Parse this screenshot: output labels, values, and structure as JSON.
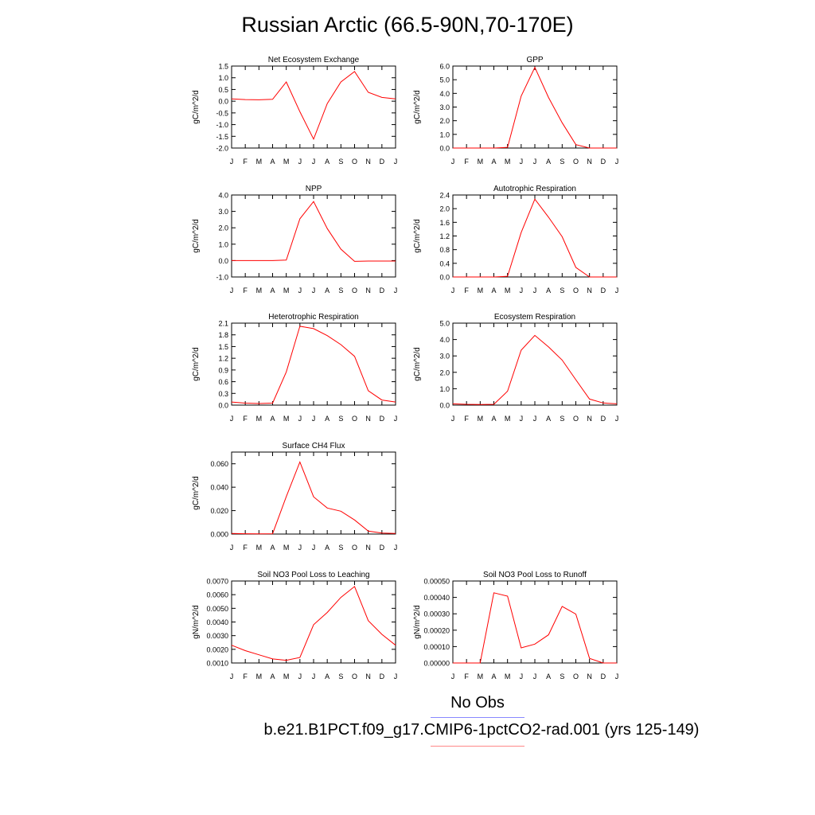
{
  "figure": {
    "title": "Russian Arctic (66.5-90N,70-170E)",
    "legend": {
      "obs_label": "No Obs",
      "obs_color": "#8888ff",
      "model_label": "b.e21.B1PCT.f09_g17.CMIP6-1pctCO2-rad.001 (yrs 125-149)",
      "model_color": "#ff8888"
    },
    "line_color": "#ff0000"
  },
  "chart_data": [
    {
      "type": "line",
      "title": "Net Ecosystem Exchange",
      "ylabel": "gC/m^2/d",
      "x": [
        "J",
        "F",
        "M",
        "A",
        "M",
        "J",
        "J",
        "A",
        "S",
        "O",
        "N",
        "D",
        "J"
      ],
      "ylim": [
        -2.0,
        1.5
      ],
      "yticks": [
        "-2.0",
        "-1.5",
        "-1.0",
        "-0.5",
        "0.0",
        "0.5",
        "1.0",
        "1.5"
      ],
      "series": [
        {
          "values": [
            0.1,
            0.07,
            0.06,
            0.08,
            0.82,
            -0.45,
            -1.62,
            -0.1,
            0.82,
            1.27,
            0.38,
            0.16,
            0.1
          ]
        }
      ]
    },
    {
      "type": "line",
      "title": "GPP",
      "ylabel": "gC/m^2/d",
      "x": [
        "J",
        "F",
        "M",
        "A",
        "M",
        "J",
        "J",
        "A",
        "S",
        "O",
        "N",
        "D",
        "J"
      ],
      "ylim": [
        0.0,
        6.0
      ],
      "yticks": [
        "0.0",
        "1.0",
        "2.0",
        "3.0",
        "4.0",
        "5.0",
        "6.0"
      ],
      "series": [
        {
          "values": [
            0.0,
            0.0,
            0.0,
            0.0,
            0.05,
            3.8,
            5.9,
            3.7,
            1.85,
            0.25,
            0.0,
            0.0,
            0.0
          ]
        }
      ]
    },
    {
      "type": "line",
      "title": "NPP",
      "ylabel": "gC/m^2/d",
      "x": [
        "J",
        "F",
        "M",
        "A",
        "M",
        "J",
        "J",
        "A",
        "S",
        "O",
        "N",
        "D",
        "J"
      ],
      "ylim": [
        -1.0,
        4.0
      ],
      "yticks": [
        "-1.0",
        "0.0",
        "1.0",
        "2.0",
        "3.0",
        "4.0"
      ],
      "series": [
        {
          "values": [
            0.0,
            0.0,
            0.0,
            0.0,
            0.03,
            2.55,
            3.6,
            1.95,
            0.7,
            -0.05,
            -0.03,
            -0.03,
            -0.03
          ]
        }
      ]
    },
    {
      "type": "line",
      "title": "Autotrophic Respiration",
      "ylabel": "gC/m^2/d",
      "x": [
        "J",
        "F",
        "M",
        "A",
        "M",
        "J",
        "J",
        "A",
        "S",
        "O",
        "N",
        "D",
        "J"
      ],
      "ylim": [
        0.0,
        2.4
      ],
      "yticks": [
        "0.0",
        "0.4",
        "0.8",
        "1.2",
        "1.6",
        "2.0",
        "2.4"
      ],
      "series": [
        {
          "values": [
            0.0,
            0.0,
            0.0,
            0.0,
            0.02,
            1.3,
            2.28,
            1.75,
            1.18,
            0.28,
            0.0,
            0.0,
            0.0
          ]
        }
      ]
    },
    {
      "type": "line",
      "title": "Heterotrophic Respiration",
      "ylabel": "gC/m^2/d",
      "x": [
        "J",
        "F",
        "M",
        "A",
        "M",
        "J",
        "J",
        "A",
        "S",
        "O",
        "N",
        "D",
        "J"
      ],
      "ylim": [
        0.0,
        2.1
      ],
      "yticks": [
        "0.0",
        "0.3",
        "0.6",
        "0.9",
        "1.2",
        "1.5",
        "1.8",
        "2.1"
      ],
      "series": [
        {
          "values": [
            0.08,
            0.05,
            0.04,
            0.05,
            0.85,
            2.02,
            1.96,
            1.78,
            1.55,
            1.25,
            0.37,
            0.13,
            0.08
          ]
        }
      ]
    },
    {
      "type": "line",
      "title": "Ecosystem Respiration",
      "ylabel": "gC/m^2/d",
      "x": [
        "J",
        "F",
        "M",
        "A",
        "M",
        "J",
        "J",
        "A",
        "S",
        "O",
        "N",
        "D",
        "J"
      ],
      "ylim": [
        0.0,
        5.0
      ],
      "yticks": [
        "0.0",
        "1.0",
        "2.0",
        "3.0",
        "4.0",
        "5.0"
      ],
      "series": [
        {
          "values": [
            0.08,
            0.05,
            0.04,
            0.05,
            0.85,
            3.35,
            4.25,
            3.55,
            2.75,
            1.55,
            0.37,
            0.13,
            0.08
          ]
        }
      ]
    },
    {
      "type": "line",
      "title": "Surface CH4 Flux",
      "ylabel": "gC/m^2/d",
      "x": [
        "J",
        "F",
        "M",
        "A",
        "M",
        "J",
        "J",
        "A",
        "S",
        "O",
        "N",
        "D",
        "J"
      ],
      "ylim": [
        0.0,
        0.07
      ],
      "yticks": [
        "0.000",
        "0.020",
        "0.040",
        "0.060"
      ],
      "ytick_values": [
        0.0,
        0.02,
        0.04,
        0.06
      ],
      "series": [
        {
          "values": [
            0.0005,
            0.0003,
            0.0002,
            0.0003,
            0.032,
            0.0615,
            0.0318,
            0.0222,
            0.0195,
            0.012,
            0.0025,
            0.0008,
            0.0005
          ]
        }
      ]
    },
    {
      "type": "line",
      "title": "Soil NO3 Pool Loss to Leaching",
      "ylabel": "gN/m^2/d",
      "x": [
        "J",
        "F",
        "M",
        "A",
        "M",
        "J",
        "J",
        "A",
        "S",
        "O",
        "N",
        "D",
        "J"
      ],
      "ylim": [
        0.001,
        0.007
      ],
      "yticks": [
        "0.0010",
        "0.0020",
        "0.0030",
        "0.0040",
        "0.0050",
        "0.0060",
        "0.0070"
      ],
      "series": [
        {
          "values": [
            0.0023,
            0.0019,
            0.0016,
            0.0013,
            0.0012,
            0.0014,
            0.0038,
            0.0047,
            0.0058,
            0.0066,
            0.0041,
            0.0031,
            0.0023
          ]
        }
      ]
    },
    {
      "type": "line",
      "title": "Soil NO3 Pool Loss to Runoff",
      "ylabel": "gN/m^2/d",
      "x": [
        "J",
        "F",
        "M",
        "A",
        "M",
        "J",
        "J",
        "A",
        "S",
        "O",
        "N",
        "D",
        "J"
      ],
      "ylim": [
        0.0,
        0.0005
      ],
      "yticks": [
        "0.00000",
        "0.00010",
        "0.00020",
        "0.00030",
        "0.00040",
        "0.00050"
      ],
      "series": [
        {
          "values": [
            0.0,
            0.0,
            0.0,
            0.000428,
            0.000408,
            9.2e-05,
            0.000115,
            0.000172,
            0.000345,
            0.000298,
            2.8e-05,
            0.0,
            0.0
          ]
        }
      ]
    }
  ]
}
